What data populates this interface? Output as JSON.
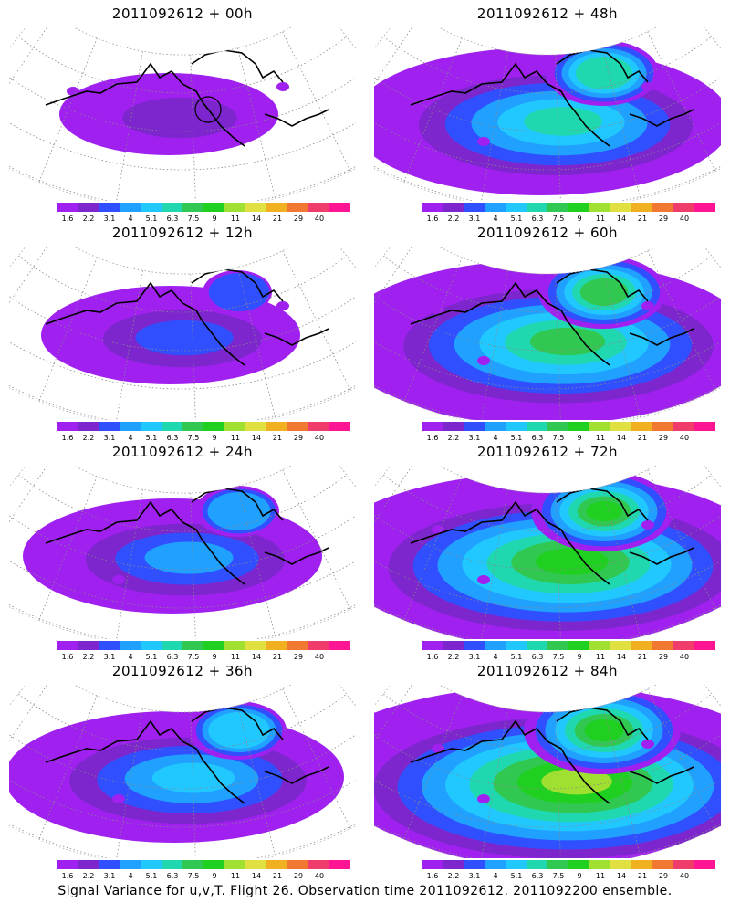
{
  "panels": [
    {
      "title": "2011092612 + 00h",
      "intensity": 0
    },
    {
      "title": "2011092612 + 48h",
      "intensity": 4
    },
    {
      "title": "2011092612 + 12h",
      "intensity": 1
    },
    {
      "title": "2011092612 + 60h",
      "intensity": 5
    },
    {
      "title": "2011092612 + 24h",
      "intensity": 2
    },
    {
      "title": "2011092612 + 72h",
      "intensity": 6
    },
    {
      "title": "2011092612 + 36h",
      "intensity": 3
    },
    {
      "title": "2011092612 + 84h",
      "intensity": 7
    }
  ],
  "colorbar": {
    "labels": [
      "1.6",
      "2.2",
      "3.1",
      "4",
      "5.1",
      "6.3",
      "7.5",
      "9",
      "11",
      "14",
      "21",
      "29",
      "40"
    ],
    "colors": [
      "#a020f0",
      "#7d26cd",
      "#3050ff",
      "#20a0ff",
      "#20c8ff",
      "#20d8b0",
      "#30c850",
      "#20d020",
      "#a0e030",
      "#e0e040",
      "#f0b020",
      "#f07830",
      "#f03c6a",
      "#ff1493"
    ]
  },
  "footer": "Signal Variance for u,v,T. Flight 26. Observation time 2011092612. 2011092200 ensemble."
}
